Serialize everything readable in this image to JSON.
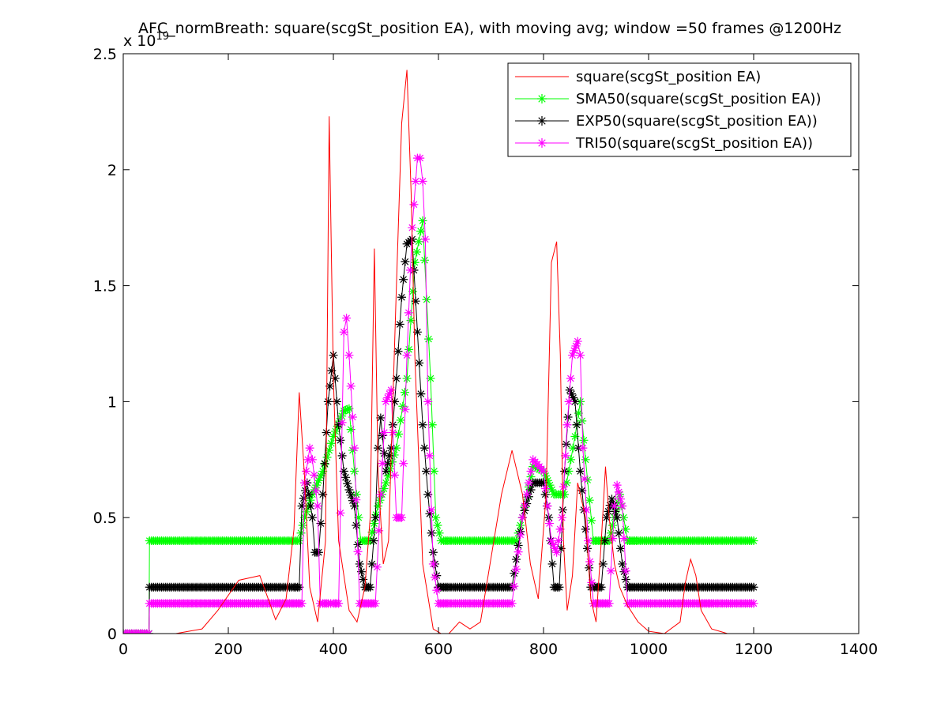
{
  "chart_data": {
    "type": "line",
    "title": "AFC_normBreath: square(scgSt_position EA), with moving avg; window =50 frames @1200Hz",
    "y_exponent_label": "x 10",
    "y_exponent_power": "19",
    "xlabel": "",
    "ylabel": "",
    "xlim": [
      0,
      1400
    ],
    "ylim": [
      0,
      2.5
    ],
    "x_ticks": [
      0,
      200,
      400,
      600,
      800,
      1000,
      1200,
      1400
    ],
    "x_tick_labels": [
      "0",
      "200",
      "400",
      "600",
      "800",
      "1000",
      "1200",
      "1400"
    ],
    "y_ticks": [
      0,
      0.5,
      1,
      1.5,
      2,
      2.5
    ],
    "y_tick_labels": [
      "0",
      "0.5",
      "1",
      "1.5",
      "2",
      "2.5"
    ],
    "grid": false,
    "legend_position": "top-right",
    "series": [
      {
        "name": "square(scgSt_position EA)",
        "color": "#ff0000",
        "marker": "none",
        "x": [
          0,
          100,
          150,
          180,
          220,
          260,
          290,
          310,
          325,
          335,
          345,
          355,
          370,
          385,
          392,
          400,
          410,
          420,
          430,
          445,
          460,
          470,
          478,
          485,
          495,
          505,
          520,
          530,
          540,
          548,
          555,
          570,
          590,
          605,
          620,
          640,
          660,
          680,
          720,
          740,
          760,
          775,
          790,
          805,
          815,
          825,
          832,
          838,
          845,
          855,
          865,
          880,
          890,
          900,
          910,
          918,
          925,
          935,
          945,
          960,
          980,
          1000,
          1030,
          1060,
          1070,
          1080,
          1090,
          1100,
          1120,
          1150,
          1200
        ],
        "y": [
          0,
          0,
          0.02,
          0.1,
          0.23,
          0.25,
          0.06,
          0.15,
          0.45,
          1.04,
          0.68,
          0.2,
          0.05,
          0.4,
          2.23,
          1.1,
          0.4,
          0.25,
          0.1,
          0.05,
          0.2,
          0.5,
          1.66,
          0.7,
          0.3,
          0.4,
          1.5,
          2.2,
          2.43,
          1.9,
          1.2,
          0.3,
          0.02,
          0.0,
          0.0,
          0.05,
          0.02,
          0.05,
          0.6,
          0.79,
          0.6,
          0.3,
          0.15,
          0.6,
          1.6,
          1.69,
          1.2,
          0.4,
          0.1,
          0.25,
          0.65,
          0.5,
          0.15,
          0.05,
          0.4,
          0.72,
          0.5,
          0.3,
          0.2,
          0.12,
          0.05,
          0.01,
          0.0,
          0.05,
          0.22,
          0.32,
          0.25,
          0.1,
          0.02,
          0.0,
          0.0
        ]
      },
      {
        "name": "SMA50(square(scgSt_position EA))",
        "color": "#00ff00",
        "marker": "asterisk",
        "x": [
          0,
          49,
          50,
          100,
          150,
          200,
          250,
          300,
          335,
          345,
          360,
          380,
          400,
          420,
          430,
          440,
          452,
          460,
          470,
          485,
          500,
          520,
          540,
          555,
          570,
          585,
          595,
          605,
          610,
          620,
          640,
          660,
          680,
          700,
          720,
          740,
          748,
          760,
          780,
          800,
          820,
          840,
          860,
          870,
          880,
          895,
          905,
          915,
          925,
          935,
          945,
          960,
          970,
          980,
          1000,
          1040,
          1080,
          1120,
          1160,
          1200
        ],
        "y": [
          0,
          0,
          0.4,
          0.4,
          0.4,
          0.4,
          0.4,
          0.4,
          0.4,
          0.5,
          0.6,
          0.7,
          0.85,
          0.96,
          0.97,
          0.7,
          0.4,
          0.4,
          0.4,
          0.55,
          0.65,
          0.8,
          1.1,
          1.6,
          1.78,
          1.1,
          0.5,
          0.4,
          0.4,
          0.4,
          0.4,
          0.4,
          0.4,
          0.4,
          0.4,
          0.4,
          0.4,
          0.5,
          0.72,
          0.7,
          0.6,
          0.6,
          0.85,
          1.0,
          0.75,
          0.4,
          0.4,
          0.4,
          0.4,
          0.5,
          0.6,
          0.4,
          0.4,
          0.4,
          0.4,
          0.4,
          0.4,
          0.4,
          0.4,
          0.4
        ]
      },
      {
        "name": "EXP50(square(scgSt_position EA))",
        "color": "#000000",
        "marker": "asterisk",
        "x": [
          0,
          49,
          50,
          100,
          150,
          200,
          250,
          300,
          325,
          335,
          340,
          350,
          360,
          365,
          372,
          380,
          390,
          400,
          410,
          420,
          430,
          440,
          450,
          460,
          470,
          480,
          485,
          490,
          500,
          510,
          520,
          530,
          540,
          550,
          560,
          570,
          580,
          590,
          600,
          610,
          620,
          640,
          660,
          680,
          700,
          720,
          740,
          760,
          780,
          800,
          810,
          820,
          830,
          840,
          850,
          860,
          870,
          880,
          890,
          900,
          910,
          920,
          930,
          940,
          950,
          960,
          970,
          1000,
          1040,
          1080,
          1120,
          1160,
          1200
        ],
        "y": [
          0,
          0,
          0.2,
          0.2,
          0.2,
          0.2,
          0.2,
          0.2,
          0.2,
          0.2,
          0.55,
          0.65,
          0.5,
          0.35,
          0.35,
          0.6,
          1.0,
          1.2,
          0.9,
          0.7,
          0.62,
          0.55,
          0.3,
          0.2,
          0.2,
          0.5,
          0.8,
          0.93,
          0.7,
          0.8,
          1.1,
          1.45,
          1.68,
          1.7,
          1.3,
          0.9,
          0.6,
          0.35,
          0.2,
          0.2,
          0.2,
          0.2,
          0.2,
          0.2,
          0.2,
          0.2,
          0.2,
          0.5,
          0.65,
          0.65,
          0.5,
          0.2,
          0.2,
          0.7,
          1.05,
          1.0,
          0.7,
          0.45,
          0.2,
          0.2,
          0.2,
          0.5,
          0.58,
          0.5,
          0.3,
          0.2,
          0.2,
          0.2,
          0.2,
          0.2,
          0.2,
          0.2,
          0.2
        ]
      },
      {
        "name": "TRI50(square(scgSt_position EA))",
        "color": "#ff00ff",
        "marker": "asterisk",
        "x": [
          0,
          49,
          50,
          100,
          150,
          200,
          250,
          270,
          290,
          300,
          310,
          320,
          330,
          340,
          345,
          355,
          360,
          370,
          375,
          380,
          390,
          395,
          400,
          410,
          420,
          425,
          430,
          440,
          450,
          460,
          470,
          480,
          490,
          500,
          510,
          520,
          530,
          540,
          550,
          560,
          565,
          570,
          575,
          580,
          590,
          600,
          610,
          620,
          640,
          660,
          680,
          700,
          720,
          740,
          760,
          780,
          800,
          815,
          825,
          835,
          845,
          855,
          865,
          870,
          875,
          885,
          895,
          905,
          915,
          925,
          935,
          940,
          950,
          960,
          975,
          1000,
          1020,
          1040,
          1060,
          1080,
          1100,
          1110,
          1120,
          1140,
          1160,
          1200
        ],
        "y": [
          0,
          0,
          0.13,
          0.13,
          0.13,
          0.13,
          0.13,
          0.13,
          0.13,
          0.13,
          0.13,
          0.13,
          0.13,
          0.13,
          0.65,
          0.8,
          0.75,
          0.55,
          0.13,
          0.13,
          0.13,
          0.13,
          0.13,
          0.13,
          1.3,
          1.36,
          1.2,
          0.8,
          0.13,
          0.13,
          0.13,
          0.13,
          0.6,
          1.0,
          1.05,
          0.5,
          0.5,
          1.2,
          1.75,
          2.05,
          2.05,
          1.95,
          1.7,
          1.0,
          0.3,
          0.13,
          0.13,
          0.13,
          0.13,
          0.13,
          0.13,
          0.13,
          0.13,
          0.13,
          0.5,
          0.75,
          0.7,
          0.4,
          0.35,
          0.5,
          0.9,
          1.2,
          1.26,
          1.2,
          0.8,
          0.4,
          0.13,
          0.13,
          0.13,
          0.13,
          0.55,
          0.64,
          0.55,
          0.13,
          0.13,
          0.13,
          0.13,
          0.13,
          0.13,
          0.13,
          0.13,
          0.13,
          0.13,
          0.13,
          0.13,
          0.13
        ]
      }
    ]
  }
}
